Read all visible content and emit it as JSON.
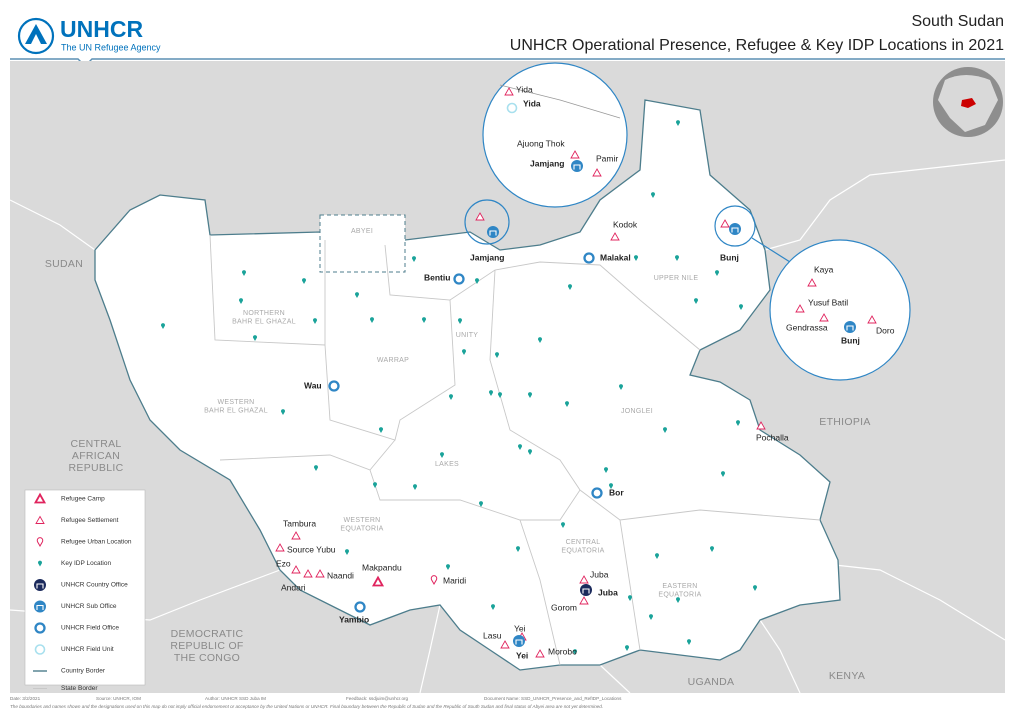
{
  "header": {
    "logo_name": "UNHCR",
    "logo_tagline": "The UN Refugee Agency",
    "title": "South Sudan",
    "subtitle": "UNHCR Operational Presence, Refugee & Key IDP Locations in 2021"
  },
  "countries": [
    [
      "SUDAN"
    ],
    [
      "CENTRAL",
      "AFRICAN",
      "REPUBLIC"
    ],
    [
      "ETHIOPIA"
    ],
    [
      "DEMOCRATIC",
      "REPUBLIC OF",
      "THE CONGO"
    ],
    [
      "UGANDA"
    ],
    [
      "KENYA"
    ]
  ],
  "states": [
    [
      "ABYEI"
    ],
    [
      "NORTHERN",
      "BAHR EL GHAZAL"
    ],
    [
      "WESTERN",
      "BAHR EL GHAZAL"
    ],
    [
      "WARRAP"
    ],
    [
      "UNITY"
    ],
    [
      "UPPER NILE"
    ],
    [
      "JONGLEI"
    ],
    [
      "LAKES"
    ],
    [
      "WESTERN",
      "EQUATORIA"
    ],
    [
      "CENTRAL",
      "EQUATORIA"
    ],
    [
      "EASTERN",
      "EQUATORIA"
    ]
  ],
  "places": [
    "Jamjang",
    "Malakal",
    "Bunj",
    "Bentiu",
    "Wau",
    "Bor",
    "Kodok",
    "Pochalla",
    "Tambura",
    "Source Yubu",
    "Ezo",
    "Andari",
    "Naandi",
    "Makpandu",
    "Maridi",
    "Yambio",
    "Juba",
    "Juba",
    "Gorom",
    "Lasu",
    "Yei",
    "Yei",
    "Morobo"
  ],
  "inset_north": [
    "Yida",
    "Yida",
    "Ajuong Thok",
    "Pamir",
    "Jamjang"
  ],
  "inset_east": [
    "Kaya",
    "Yusuf Batil",
    "Gendrassa",
    "Doro",
    "Bunj"
  ],
  "legend": [
    "Refugee Camp",
    "Refugee Settlement",
    "Refugee Urban Location",
    "Key IDP Location",
    "UNHCR Country Office",
    "UNHCR Sub Office",
    "UNHCR Field Office",
    "UNHCR Field Unit",
    "Country Border",
    "State Border"
  ],
  "footer": {
    "meta": [
      "Date: 3/2/2021",
      "Source: UNHCR, IOM",
      "Author: UNHCR SSD Juba IM",
      "Feedback: ssdjuim@unhcr.org",
      "Document Name: SSD_UNHCR_Presence_and_RefIDP_Locations"
    ],
    "disclaimer": "The boundaries and names shown and the designations used on this map do not imply official endorsement or acceptance by the United Nations or UNHCR. Final boundary between the Republic of Sudan and the Republic of South Sudan and final status of Abyei area are not yet determined."
  }
}
